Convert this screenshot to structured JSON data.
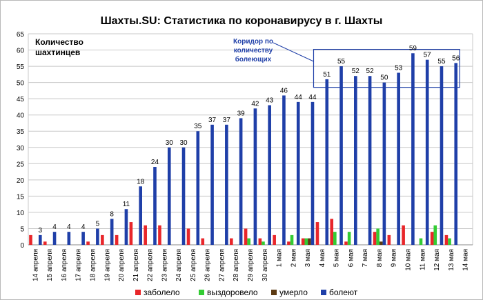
{
  "chart_data": {
    "type": "bar",
    "title": "Шахты.SU: Статистика по коронавирусу в г. Шахты",
    "ylabel": "Количество шахтинцев",
    "xlabel": "",
    "ylim": [
      0,
      65
    ],
    "yticks": [
      0,
      5,
      10,
      15,
      20,
      25,
      30,
      35,
      40,
      45,
      50,
      55,
      60,
      65
    ],
    "grid": true,
    "legend_position": "bottom",
    "categories": [
      "14 апреля",
      "15 апреля",
      "16 апреля",
      "17 апреля",
      "18 апреля",
      "19 апреля",
      "20 апреля",
      "21 апреля",
      "22 апреля",
      "23 апреля",
      "24 апреля",
      "25 апреля",
      "26 апреля",
      "27 апреля",
      "28 апреля",
      "29 апреля",
      "30 апреля",
      "1 мая",
      "2 мая",
      "3 мая",
      "4 мая",
      "5 мая",
      "6 мая",
      "7 мая",
      "8 мая",
      "9 мая",
      "10 мая",
      "11 мая",
      "12 мая",
      "13 мая",
      "14 мая"
    ],
    "series": [
      {
        "name": "заболело",
        "color": "#e8262a",
        "values": [
          3,
          1,
          0,
          0,
          1,
          3,
          3,
          7,
          6,
          6,
          0,
          5,
          2,
          0,
          2,
          5,
          2,
          3,
          1,
          2,
          7,
          8,
          1,
          0,
          4,
          3,
          6,
          0,
          4,
          3,
          0
        ]
      },
      {
        "name": "выздоровело",
        "color": "#33cc33",
        "values": [
          0,
          0,
          0,
          0,
          0,
          0,
          0,
          0,
          0,
          0,
          0,
          0,
          0,
          0,
          0,
          2,
          1,
          0,
          3,
          2,
          0,
          4,
          4,
          0,
          5,
          0,
          0,
          2,
          6,
          2,
          0
        ]
      },
      {
        "name": "умерло",
        "color": "#5c3a12",
        "values": [
          0,
          0,
          0,
          0,
          0,
          0,
          0,
          0,
          0,
          0,
          0,
          0,
          0,
          0,
          0,
          0,
          0,
          0,
          0,
          2,
          0,
          0,
          0,
          0,
          1,
          0,
          0,
          0,
          0,
          0,
          0
        ]
      },
      {
        "name": "болеют",
        "color": "#1f3fa8",
        "values": [
          3,
          4,
          4,
          4,
          5,
          8,
          11,
          18,
          24,
          30,
          30,
          35,
          37,
          37,
          39,
          42,
          43,
          46,
          44,
          44,
          51,
          55,
          52,
          52,
          50,
          53,
          59,
          57,
          55,
          56,
          null
        ]
      }
    ],
    "data_labels_series": "болеют",
    "annotation": {
      "text": [
        "Коридор по",
        "количеству",
        "болеющих"
      ],
      "color": "#1f3fa8",
      "range_from": "4 мая",
      "range_to": "13 мая",
      "ymin": 50,
      "ymax": 59
    }
  }
}
